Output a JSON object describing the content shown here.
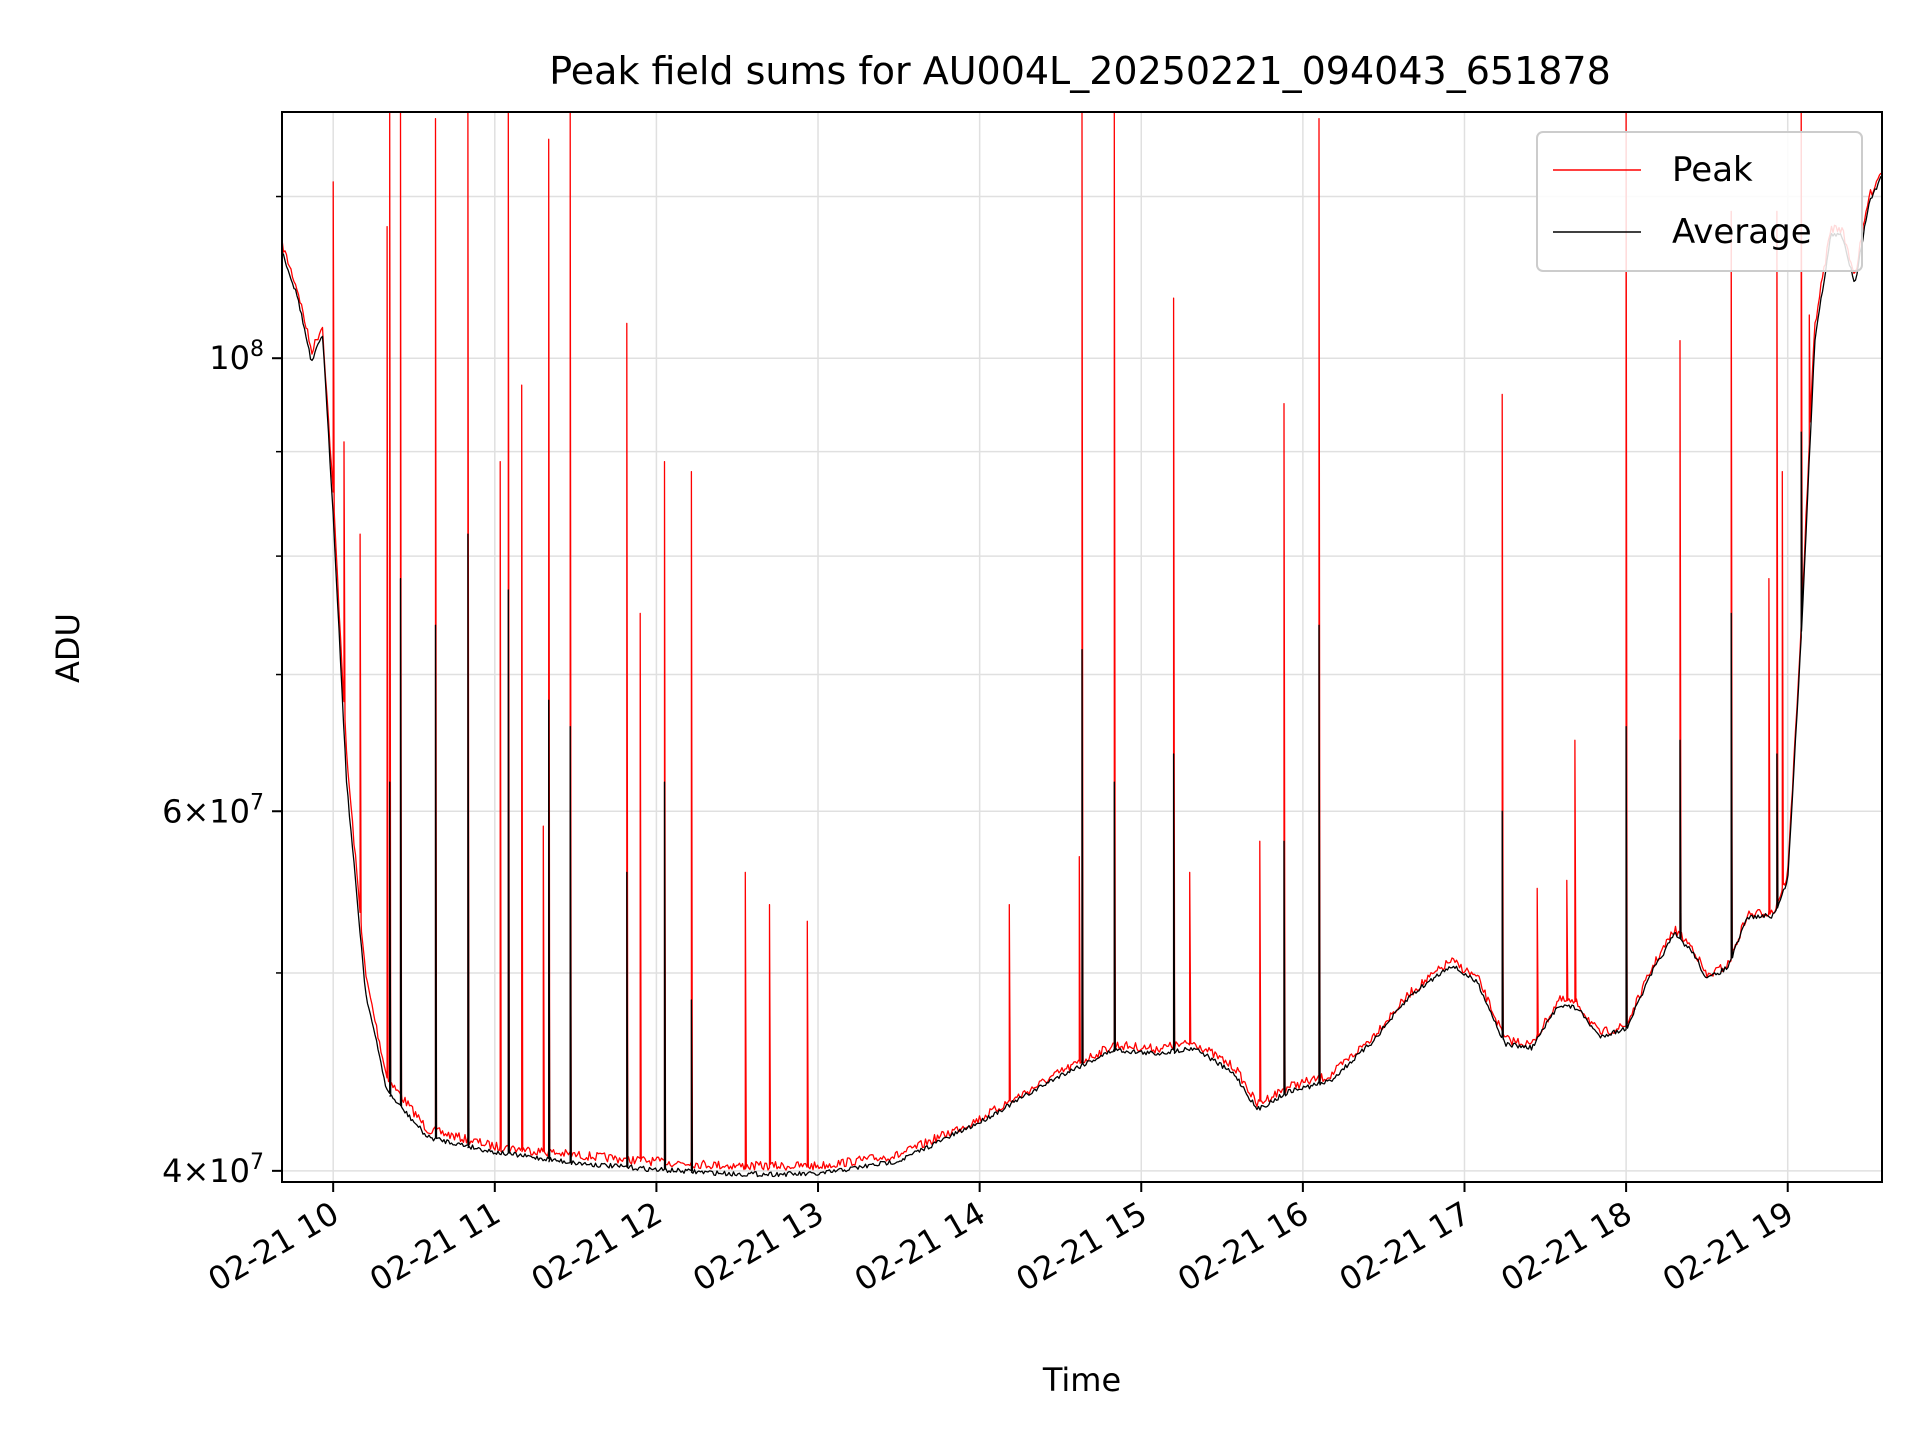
{
  "chart_data": {
    "type": "line",
    "title": "Peak field sums for AU004L_20250221_094043_651878",
    "xlabel": "Time",
    "ylabel": "ADU",
    "x_axis": {
      "kind": "datetime",
      "range": [
        "2025-02-21 09:41",
        "2025-02-21 19:35"
      ],
      "ticks": [
        {
          "value": "2025-02-21 10:00",
          "label": "02-21 10"
        },
        {
          "value": "2025-02-21 11:00",
          "label": "02-21 11"
        },
        {
          "value": "2025-02-21 12:00",
          "label": "02-21 12"
        },
        {
          "value": "2025-02-21 13:00",
          "label": "02-21 13"
        },
        {
          "value": "2025-02-21 14:00",
          "label": "02-21 14"
        },
        {
          "value": "2025-02-21 15:00",
          "label": "02-21 15"
        },
        {
          "value": "2025-02-21 16:00",
          "label": "02-21 16"
        },
        {
          "value": "2025-02-21 17:00",
          "label": "02-21 17"
        },
        {
          "value": "2025-02-21 18:00",
          "label": "02-21 18"
        },
        {
          "value": "2025-02-21 19:00",
          "label": "02-21 19"
        }
      ]
    },
    "y_axis": {
      "scale": "log",
      "range": [
        39500000,
        132000000
      ],
      "major_ticks": [
        {
          "value": 40000000,
          "base": "4×10",
          "exp": "7"
        },
        {
          "value": 60000000,
          "base": "6×10",
          "exp": "7"
        },
        {
          "value": 100000000,
          "base": "10",
          "exp": "8"
        }
      ],
      "minor_ticks": [
        50000000,
        70000000,
        80000000,
        90000000,
        120000000
      ]
    },
    "grid": true,
    "legend_position": "top-right",
    "series": [
      {
        "name": "Peak",
        "color": "#ff0000",
        "baseline": [
          [
            "2025-02-21 09:41",
            114000000
          ],
          [
            "2025-02-21 09:47",
            108000000
          ],
          [
            "2025-02-21 09:52",
            101000000
          ],
          [
            "2025-02-21 09:56",
            104000000
          ],
          [
            "2025-02-21 10:00",
            86000000
          ],
          [
            "2025-02-21 10:05",
            64000000
          ],
          [
            "2025-02-21 10:12",
            50000000
          ],
          [
            "2025-02-21 10:20",
            44500000
          ],
          [
            "2025-02-21 10:35",
            42000000
          ],
          [
            "2025-02-21 11:00",
            41200000
          ],
          [
            "2025-02-21 11:30",
            40800000
          ],
          [
            "2025-02-21 12:00",
            40500000
          ],
          [
            "2025-02-21 12:30",
            40300000
          ],
          [
            "2025-02-21 13:00",
            40300000
          ],
          [
            "2025-02-21 13:30",
            40800000
          ],
          [
            "2025-02-21 14:00",
            42500000
          ],
          [
            "2025-02-21 14:30",
            44800000
          ],
          [
            "2025-02-21 14:50",
            46200000
          ],
          [
            "2025-02-21 15:05",
            46000000
          ],
          [
            "2025-02-21 15:20",
            46300000
          ],
          [
            "2025-02-21 15:35",
            45000000
          ],
          [
            "2025-02-21 15:43",
            43200000
          ],
          [
            "2025-02-21 15:55",
            44100000
          ],
          [
            "2025-02-21 16:10",
            44600000
          ],
          [
            "2025-02-21 16:25",
            46500000
          ],
          [
            "2025-02-21 16:40",
            49000000
          ],
          [
            "2025-02-21 16:55",
            50800000
          ],
          [
            "2025-02-21 17:05",
            49800000
          ],
          [
            "2025-02-21 17:15",
            46500000
          ],
          [
            "2025-02-21 17:25",
            46200000
          ],
          [
            "2025-02-21 17:35",
            48600000
          ],
          [
            "2025-02-21 17:42",
            48400000
          ],
          [
            "2025-02-21 17:50",
            46800000
          ],
          [
            "2025-02-21 18:00",
            47200000
          ],
          [
            "2025-02-21 18:10",
            50500000
          ],
          [
            "2025-02-21 18:18",
            52600000
          ],
          [
            "2025-02-21 18:25",
            51500000
          ],
          [
            "2025-02-21 18:30",
            49900000
          ],
          [
            "2025-02-21 18:38",
            50600000
          ],
          [
            "2025-02-21 18:45",
            53500000
          ],
          [
            "2025-02-21 18:55",
            53700000
          ],
          [
            "2025-02-21 19:00",
            56000000
          ],
          [
            "2025-02-21 19:05",
            74000000
          ],
          [
            "2025-02-21 19:10",
            104000000
          ],
          [
            "2025-02-21 19:16",
            116000000
          ],
          [
            "2025-02-21 19:20",
            116000000
          ],
          [
            "2025-02-21 19:25",
            110000000
          ],
          [
            "2025-02-21 19:30",
            120000000
          ],
          [
            "2025-02-21 19:35",
            124000000
          ]
        ],
        "spikes": [
          [
            "2025-02-21 10:00",
            122000000
          ],
          [
            "2025-02-21 10:04",
            91000000
          ],
          [
            "2025-02-21 10:10",
            82000000
          ],
          [
            "2025-02-21 10:20",
            116000000
          ],
          [
            "2025-02-21 10:21",
            134000000
          ],
          [
            "2025-02-21 10:25",
            134000000
          ],
          [
            "2025-02-21 10:38",
            131000000
          ],
          [
            "2025-02-21 10:50",
            134000000
          ],
          [
            "2025-02-21 11:02",
            89000000
          ],
          [
            "2025-02-21 11:05",
            136000000
          ],
          [
            "2025-02-21 11:10",
            97000000
          ],
          [
            "2025-02-21 11:18",
            59000000
          ],
          [
            "2025-02-21 11:20",
            128000000
          ],
          [
            "2025-02-21 11:28",
            138000000
          ],
          [
            "2025-02-21 11:49",
            104000000
          ],
          [
            "2025-02-21 11:54",
            75000000
          ],
          [
            "2025-02-21 12:03",
            89000000
          ],
          [
            "2025-02-21 12:13",
            88000000
          ],
          [
            "2025-02-21 12:33",
            56000000
          ],
          [
            "2025-02-21 12:42",
            54000000
          ],
          [
            "2025-02-21 12:56",
            53000000
          ],
          [
            "2025-02-21 14:11",
            54000000
          ],
          [
            "2025-02-21 14:37",
            57000000
          ],
          [
            "2025-02-21 14:38",
            136000000
          ],
          [
            "2025-02-21 14:50",
            136000000
          ],
          [
            "2025-02-21 15:12",
            107000000
          ],
          [
            "2025-02-21 15:18",
            56000000
          ],
          [
            "2025-02-21 15:44",
            58000000
          ],
          [
            "2025-02-21 15:53",
            95000000
          ],
          [
            "2025-02-21 16:06",
            131000000
          ],
          [
            "2025-02-21 17:14",
            96000000
          ],
          [
            "2025-02-21 17:27",
            55000000
          ],
          [
            "2025-02-21 17:38",
            55500000
          ],
          [
            "2025-02-21 17:41",
            65000000
          ],
          [
            "2025-02-21 18:00",
            140000000
          ],
          [
            "2025-02-21 18:20",
            102000000
          ],
          [
            "2025-02-21 18:39",
            118000000
          ],
          [
            "2025-02-21 18:53",
            78000000
          ],
          [
            "2025-02-21 18:56",
            118000000
          ],
          [
            "2025-02-21 18:58",
            88000000
          ],
          [
            "2025-02-21 19:05",
            132000000
          ],
          [
            "2025-02-21 19:08",
            105000000
          ]
        ]
      },
      {
        "name": "Average",
        "color": "#000000",
        "baseline": [
          [
            "2025-02-21 09:41",
            113000000
          ],
          [
            "2025-02-21 09:47",
            107000000
          ],
          [
            "2025-02-21 09:52",
            99500000
          ],
          [
            "2025-02-21 09:56",
            103000000
          ],
          [
            "2025-02-21 10:00",
            84000000
          ],
          [
            "2025-02-21 10:05",
            62000000
          ],
          [
            "2025-02-21 10:12",
            49000000
          ],
          [
            "2025-02-21 10:20",
            43800000
          ],
          [
            "2025-02-21 10:35",
            41600000
          ],
          [
            "2025-02-21 11:00",
            40900000
          ],
          [
            "2025-02-21 11:30",
            40400000
          ],
          [
            "2025-02-21 12:00",
            40100000
          ],
          [
            "2025-02-21 12:30",
            39900000
          ],
          [
            "2025-02-21 13:00",
            39900000
          ],
          [
            "2025-02-21 13:30",
            40500000
          ],
          [
            "2025-02-21 14:00",
            42300000
          ],
          [
            "2025-02-21 14:30",
            44600000
          ],
          [
            "2025-02-21 14:50",
            45900000
          ],
          [
            "2025-02-21 15:05",
            45700000
          ],
          [
            "2025-02-21 15:20",
            46000000
          ],
          [
            "2025-02-21 15:35",
            44600000
          ],
          [
            "2025-02-21 15:43",
            42900000
          ],
          [
            "2025-02-21 15:55",
            43800000
          ],
          [
            "2025-02-21 16:10",
            44300000
          ],
          [
            "2025-02-21 16:25",
            46200000
          ],
          [
            "2025-02-21 16:40",
            48800000
          ],
          [
            "2025-02-21 16:55",
            50500000
          ],
          [
            "2025-02-21 17:05",
            49500000
          ],
          [
            "2025-02-21 17:15",
            46200000
          ],
          [
            "2025-02-21 17:25",
            46000000
          ],
          [
            "2025-02-21 17:35",
            48300000
          ],
          [
            "2025-02-21 17:42",
            48100000
          ],
          [
            "2025-02-21 17:50",
            46600000
          ],
          [
            "2025-02-21 18:00",
            47000000
          ],
          [
            "2025-02-21 18:10",
            50200000
          ],
          [
            "2025-02-21 18:18",
            52300000
          ],
          [
            "2025-02-21 18:25",
            51200000
          ],
          [
            "2025-02-21 18:30",
            49700000
          ],
          [
            "2025-02-21 18:38",
            50400000
          ],
          [
            "2025-02-21 18:45",
            53300000
          ],
          [
            "2025-02-21 18:55",
            53400000
          ],
          [
            "2025-02-21 19:00",
            55600000
          ],
          [
            "2025-02-21 19:05",
            73000000
          ],
          [
            "2025-02-21 19:10",
            102000000
          ],
          [
            "2025-02-21 19:16",
            115000000
          ],
          [
            "2025-02-21 19:20",
            115000000
          ],
          [
            "2025-02-21 19:25",
            109000000
          ],
          [
            "2025-02-21 19:30",
            119000000
          ],
          [
            "2025-02-21 19:35",
            123000000
          ]
        ],
        "spikes": [
          [
            "2025-02-21 10:21",
            62000000
          ],
          [
            "2025-02-21 10:25",
            78000000
          ],
          [
            "2025-02-21 10:38",
            74000000
          ],
          [
            "2025-02-21 10:50",
            82000000
          ],
          [
            "2025-02-21 11:05",
            77000000
          ],
          [
            "2025-02-21 11:20",
            68000000
          ],
          [
            "2025-02-21 11:28",
            66000000
          ],
          [
            "2025-02-21 11:49",
            56000000
          ],
          [
            "2025-02-21 12:03",
            62000000
          ],
          [
            "2025-02-21 12:13",
            48500000
          ],
          [
            "2025-02-21 14:38",
            72000000
          ],
          [
            "2025-02-21 14:50",
            62000000
          ],
          [
            "2025-02-21 15:12",
            64000000
          ],
          [
            "2025-02-21 15:53",
            58000000
          ],
          [
            "2025-02-21 16:06",
            74000000
          ],
          [
            "2025-02-21 17:14",
            60000000
          ],
          [
            "2025-02-21 18:00",
            66000000
          ],
          [
            "2025-02-21 18:20",
            65000000
          ],
          [
            "2025-02-21 18:39",
            75000000
          ],
          [
            "2025-02-21 18:56",
            64000000
          ],
          [
            "2025-02-21 19:05",
            92000000
          ]
        ]
      }
    ]
  }
}
